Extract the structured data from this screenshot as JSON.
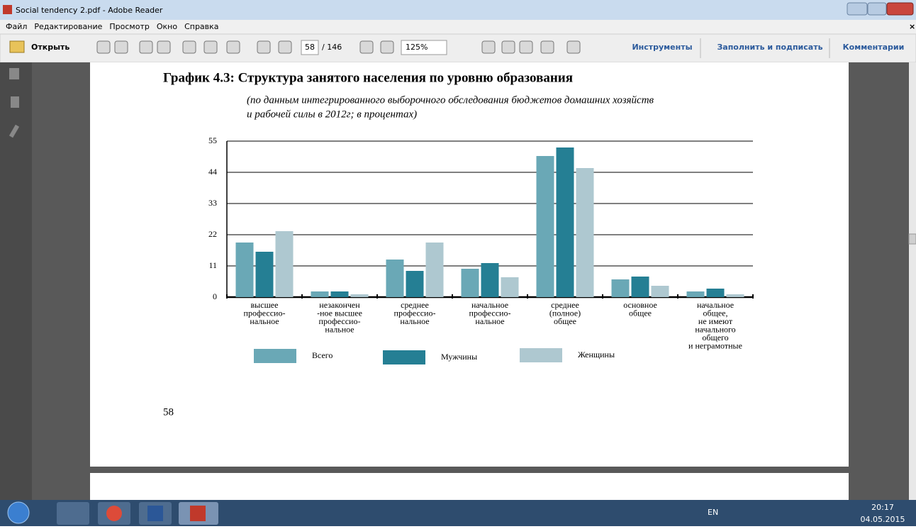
{
  "window": {
    "title": "Social tendency 2.pdf - Adobe Reader",
    "menu": [
      "Файл",
      "Редактирование",
      "Просмотр",
      "Окно",
      "Справка"
    ]
  },
  "toolbar": {
    "open": "Открыть",
    "page": "58",
    "page_count": "/ 146",
    "zoom": "125%",
    "tabs": [
      "Инструменты",
      "Заполнить и подписать",
      "Комментарии"
    ]
  },
  "document": {
    "page_number": "58"
  },
  "taskbar": {
    "language": "EN",
    "time": "20:17",
    "date": "04.05.2015"
  },
  "chart_data": {
    "type": "bar",
    "title": "График 4.3: Структура занятого населения по уровню образования",
    "subtitle": [
      "(по данным интегрированного выборочного обследования бюджетов домашних хозяйств",
      "и рабочей силы в 2012г; в процентах)"
    ],
    "categories": [
      [
        "высшее",
        "профессио-",
        "нальное"
      ],
      [
        "незакончен",
        "-ное высшее",
        "профессио-",
        "нальное"
      ],
      [
        "среднее",
        "профессио-",
        "нальное"
      ],
      [
        "начальное",
        "профессио-",
        "нальное"
      ],
      [
        "среднее",
        "(полное)",
        "общее"
      ],
      [
        "основное",
        "общее"
      ],
      [
        "начальное",
        "общее,",
        "не имеют",
        "начального",
        "общего",
        "и неграмотные"
      ]
    ],
    "series": [
      {
        "name": "Всего",
        "color": "#6aa8b6",
        "values": [
          19.25,
          2,
          13.25,
          10,
          49.75,
          6.25,
          2
        ]
      },
      {
        "name": "Мужчины",
        "color": "#257f94",
        "values": [
          16,
          2,
          9.25,
          12,
          52.75,
          7.25,
          3
        ]
      },
      {
        "name": "Женщины",
        "color": "#aec8d0",
        "values": [
          23.25,
          1,
          19.25,
          7,
          45.5,
          4,
          1
        ]
      }
    ],
    "ylim": [
      0,
      55
    ],
    "yticks": [
      0,
      11,
      22,
      33,
      44,
      55
    ],
    "grid": true
  }
}
